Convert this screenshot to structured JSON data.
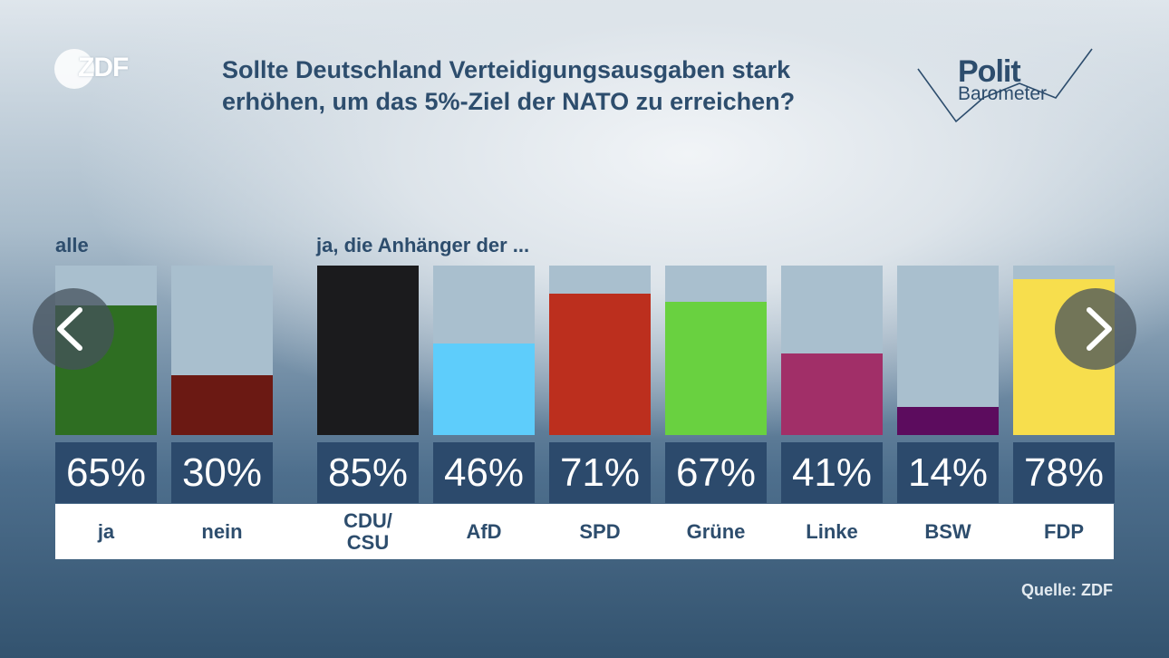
{
  "logo": {
    "text": "ZDF"
  },
  "title_lines": [
    "Sollte Deutschland Verteidigungsausgaben stark",
    "erhöhen, um das 5%-Ziel der NATO zu erreichen?"
  ],
  "brand": {
    "line1": "Polit",
    "line2": "Barometer"
  },
  "groups": {
    "all": "alle",
    "supporters": "ja, die Anhänger der ..."
  },
  "source": "Quelle: ZDF",
  "navigation": {
    "prev_icon": "chevron-left-icon",
    "next_icon": "chevron-right-icon"
  },
  "chart_data": {
    "type": "bar",
    "categories": [
      "ja",
      "nein",
      "CDU/ CSU",
      "AfD",
      "SPD",
      "Grüne",
      "Linke",
      "BSW",
      "FDP"
    ],
    "values": [
      65,
      30,
      85,
      46,
      71,
      67,
      41,
      14,
      78
    ],
    "value_labels": [
      "65%",
      "30%",
      "85%",
      "46%",
      "71%",
      "67%",
      "41%",
      "14%",
      "78%"
    ],
    "colors": [
      "#2e6e22",
      "#6b1913",
      "#1b1b1d",
      "#5ecdfb",
      "#bc2f1e",
      "#69d140",
      "#a12f68",
      "#5c0c5e",
      "#f7de4d"
    ],
    "ylim": [
      0,
      85
    ],
    "unit": "%",
    "track_color": "#a9bfce"
  }
}
